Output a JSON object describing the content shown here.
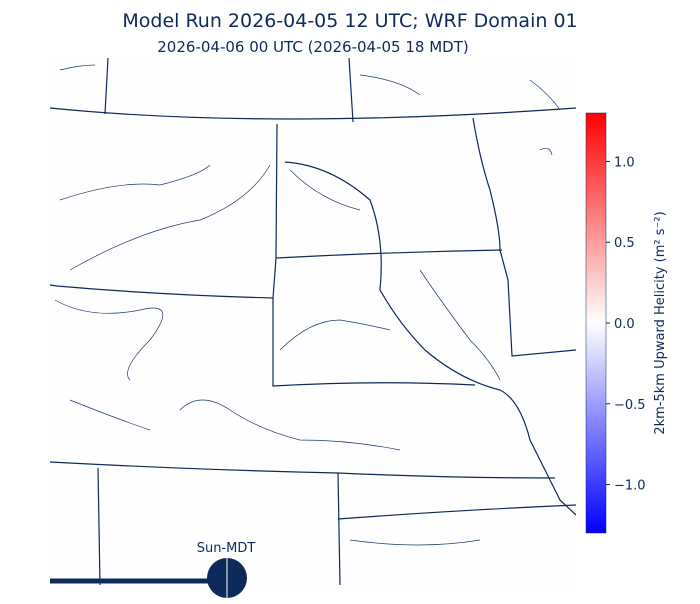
{
  "header": {
    "title": "Model Run 2026-04-05 12 UTC; WRF Domain 01",
    "subtitle": "2026-04-06 00 UTC  (2026-04-05 18 MDT)"
  },
  "colorbar": {
    "label": "2km-5km Upward Helicity (m² s⁻²)",
    "lim": [
      -1.3,
      1.3
    ],
    "ticks": [
      {
        "value": 1,
        "label": "1.0"
      },
      0.5,
      {
        "value": 0,
        "label": "0.0"
      },
      {
        "value": -0.5,
        "label": "−0.5"
      },
      {
        "value": -1,
        "label": "−1.0"
      }
    ],
    "colors": [
      "#0000ff",
      "#ffffff",
      "#ff0000"
    ]
  },
  "timeline": {
    "label": "Sun-MDT"
  }
}
